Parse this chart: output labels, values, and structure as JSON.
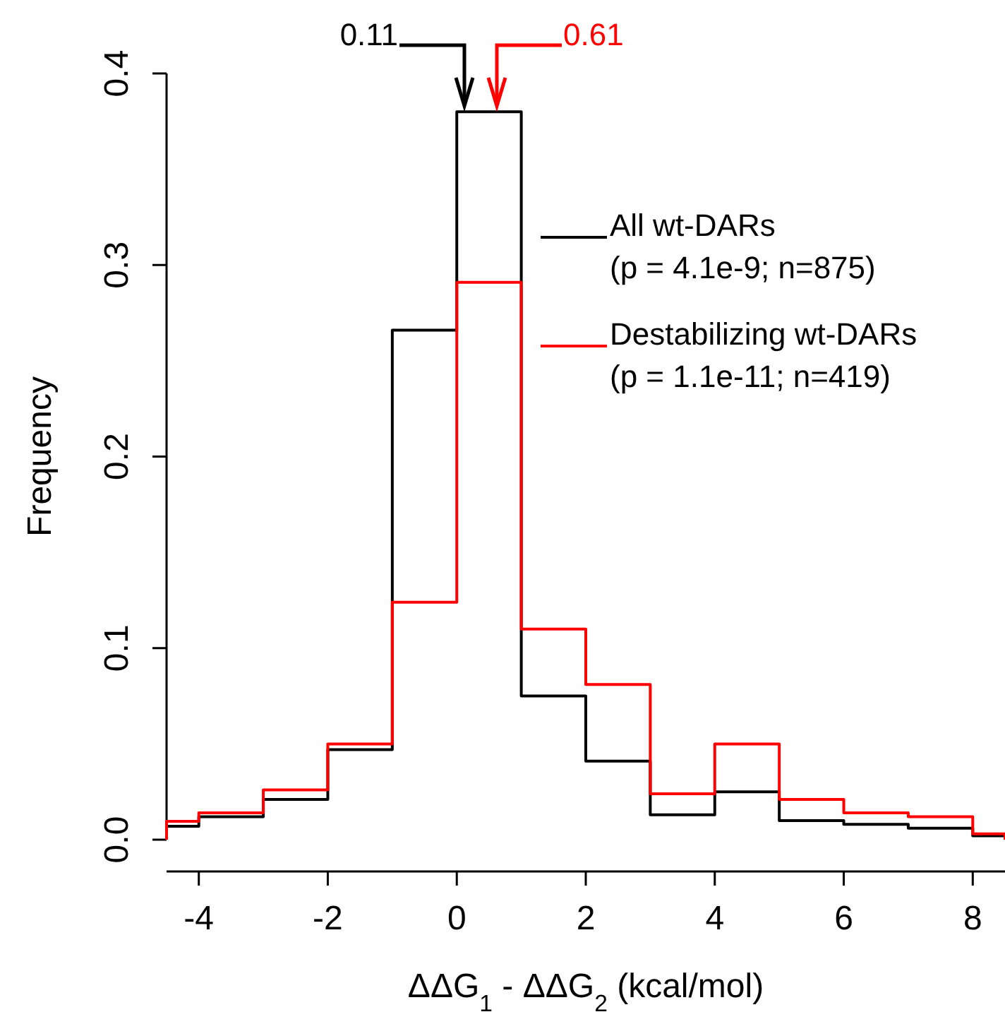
{
  "chart_data": {
    "type": "histogram",
    "xlabel": "ΔΔG$_{1}$ - ΔΔG$_{2}$ (kcal/mol)",
    "ylabel": "Frequency",
    "bins": [
      -4.5,
      -4,
      -3,
      -2,
      -1,
      0,
      1,
      2,
      3,
      4,
      5,
      6,
      7,
      8,
      8.5
    ],
    "series": [
      {
        "name": "All wt-DARs\n(p = 4.1e-9; n=875)",
        "color": "#000000",
        "values": [
          0.007,
          0.012,
          0.021,
          0.047,
          0.266,
          0.38,
          0.075,
          0.041,
          0.013,
          0.025,
          0.01,
          0.008,
          0.006,
          0.002
        ]
      },
      {
        "name": "Destabilizing wt-DARs\n(p = 1.1e-11; n=419)",
        "color": "#ff0000",
        "values": [
          0.0096,
          0.014,
          0.026,
          0.05,
          0.124,
          0.291,
          0.11,
          0.081,
          0.024,
          0.05,
          0.021,
          0.014,
          0.012,
          0.003
        ]
      }
    ],
    "annotations": [
      "0.11",
      "0.61"
    ],
    "xlim": [
      -4.5,
      8.5
    ],
    "xticks": [
      -4,
      -2,
      0,
      2,
      4,
      6,
      8
    ],
    "ylim": [
      0,
      0.4
    ],
    "yticks": [
      {
        "value": 0,
        "label": "0.0"
      },
      {
        "value": 0.1,
        "label": "0.1"
      },
      {
        "value": 0.2,
        "label": "0.2"
      },
      {
        "value": 0.3,
        "label": "0.3"
      },
      {
        "value": 0.4,
        "label": "0.4"
      }
    ],
    "legend": "top right",
    "grid": false
  }
}
